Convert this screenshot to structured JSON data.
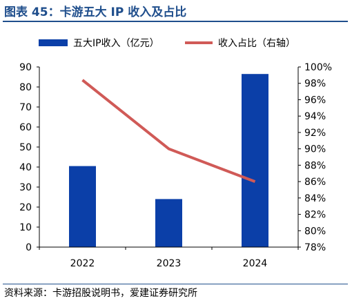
{
  "figure": {
    "title": "图表 45：卡游五大 IP 收入及占比",
    "source": "资料来源：卡游招股说明书，爱建证券研究所"
  },
  "colors": {
    "title": "#1f4e8c",
    "bar": "#0b3fa8",
    "line": "#d05a57",
    "axis": "#000000"
  },
  "chart_data": {
    "type": "bar",
    "categories": [
      "2022",
      "2023",
      "2024"
    ],
    "series": [
      {
        "name": "五大IP收入（亿元）",
        "type": "bar",
        "axis": "left",
        "values": [
          40.5,
          24,
          86.5
        ]
      },
      {
        "name": "收入占比（右轴）",
        "type": "line",
        "axis": "right",
        "values": [
          98.4,
          90.0,
          86.0
        ]
      }
    ],
    "y_left": {
      "range": [
        0,
        90
      ],
      "ticks": [
        0,
        10,
        20,
        30,
        40,
        50,
        60,
        70,
        80,
        90
      ]
    },
    "y_right": {
      "range": [
        78,
        100
      ],
      "ticks": [
        78,
        80,
        82,
        84,
        86,
        88,
        90,
        92,
        94,
        96,
        98,
        100
      ],
      "tick_suffix": "%"
    },
    "legend_position": "top",
    "grid": false
  }
}
